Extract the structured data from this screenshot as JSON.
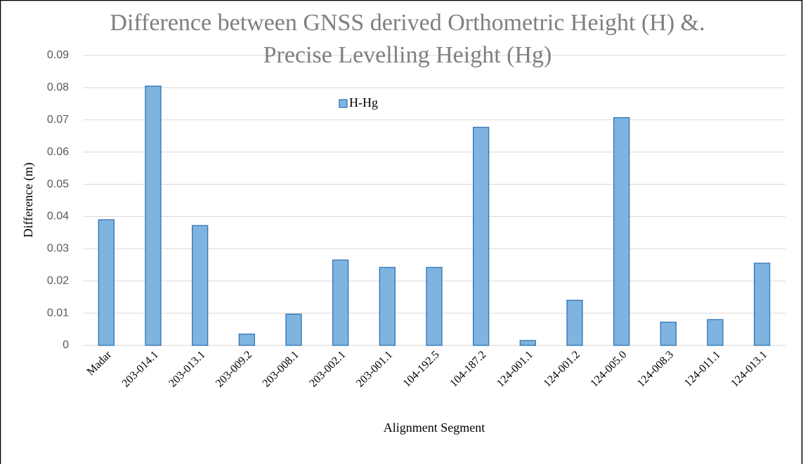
{
  "chart_data": {
    "type": "bar",
    "title": "Difference between GNSS derived Orthometric Height (H) &. Precise Levelling Height (Hg)",
    "x_label": "Alignment Segment",
    "y_label": "Difference (m)",
    "categories": [
      "Madar",
      "203-014.1",
      "203-013.1",
      "203-009.2",
      "203-008.1",
      "203-002.1",
      "203-001.1",
      "104-192.5",
      "104-187.2",
      "124-001.1",
      "124-001.2",
      "124-005.0",
      "124-008.3",
      "124-011.1",
      "124-013.1"
    ],
    "series": [
      {
        "name": "H-Hg",
        "color": "#7fb4e0",
        "values": [
          0.039,
          0.0805,
          0.0372,
          0.0035,
          0.0097,
          0.0265,
          0.0242,
          0.0242,
          0.0677,
          0.0015,
          0.014,
          0.0707,
          0.0072,
          0.008,
          0.0255
        ]
      }
    ],
    "ylim": [
      0,
      0.09
    ],
    "yticks": [
      0,
      0.01,
      0.02,
      0.03,
      0.04,
      0.05,
      0.06,
      0.07,
      0.08,
      0.09
    ],
    "grid": true,
    "legend": "top"
  }
}
